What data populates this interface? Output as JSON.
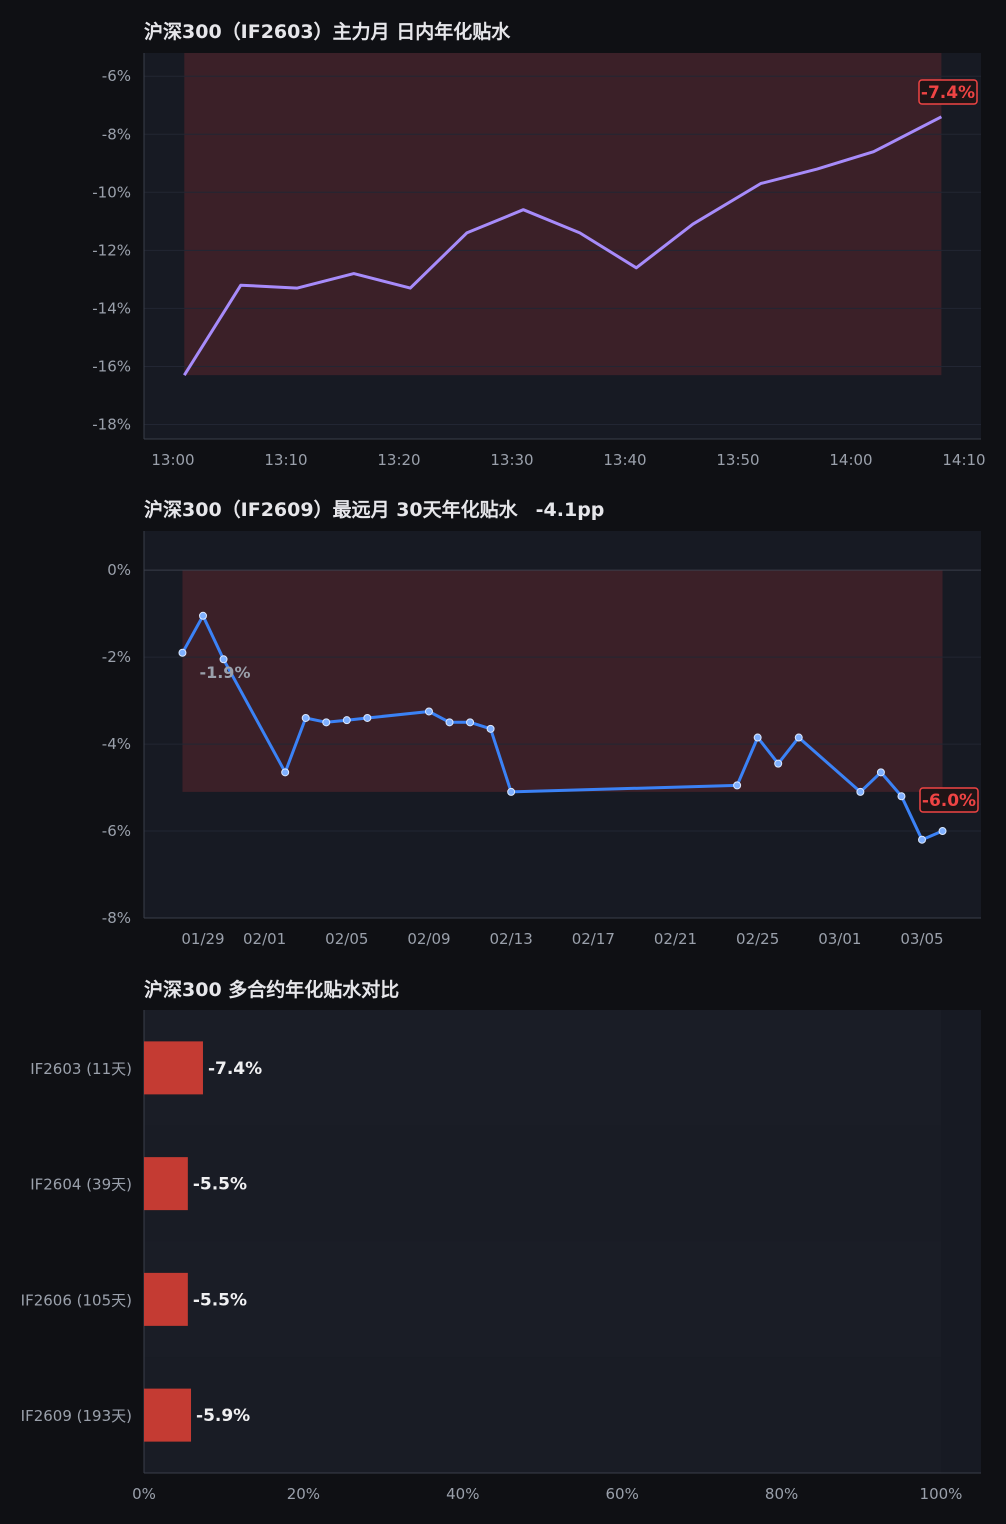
{
  "chart_data": [
    {
      "type": "line",
      "title": "沪深300（IF2603）主力月 日内年化贴水",
      "ylim": [
        -18.5,
        -5.2
      ],
      "yticks": [
        -6,
        -8,
        -10,
        -12,
        -14,
        -16,
        -18
      ],
      "ytick_labels": [
        "-6%",
        "-8%",
        "-10%",
        "-12%",
        "-14%",
        "-16%",
        "-18%"
      ],
      "xticks": [
        "13:00",
        "13:10",
        "13:20",
        "13:30",
        "13:40",
        "13:50",
        "14:00",
        "14:10"
      ],
      "x": [
        "13:01",
        "13:06",
        "13:11",
        "13:16",
        "13:21",
        "13:26",
        "13:31",
        "13:36",
        "13:41",
        "13:46",
        "13:52",
        "13:57",
        "14:02",
        "14:08"
      ],
      "values": [
        -16.3,
        -13.2,
        -13.3,
        -12.8,
        -13.3,
        -11.4,
        -10.6,
        -11.4,
        -12.6,
        -11.1,
        -9.7,
        -9.2,
        -8.6,
        -7.4
      ],
      "line_color": "#a78bfa",
      "shade_color": "#ef4444",
      "last_label": "-7.4%",
      "grid": true
    },
    {
      "type": "line",
      "title": "沪深300（IF2609）最远月 30天年化贴水",
      "title_change": "-4.1pp",
      "ylim": [
        -8.0,
        0.9
      ],
      "yticks": [
        0,
        -2,
        -4,
        -6,
        -8
      ],
      "ytick_labels": [
        "0%",
        "-2%",
        "-4%",
        "-6%",
        "-8%"
      ],
      "xticks": [
        "01/29",
        "02/01",
        "02/05",
        "02/09",
        "02/13",
        "02/17",
        "02/21",
        "02/25",
        "03/01",
        "03/05"
      ],
      "x": [
        "01/28",
        "01/29",
        "01/30",
        "02/02",
        "02/03",
        "02/04",
        "02/05",
        "02/06",
        "02/09",
        "02/10",
        "02/11",
        "02/12",
        "02/13",
        "02/24",
        "02/25",
        "02/26",
        "02/27",
        "03/02",
        "03/03",
        "03/04",
        "03/05",
        "03/06"
      ],
      "values": [
        -1.9,
        -1.05,
        -2.05,
        -4.65,
        -3.4,
        -3.5,
        -3.45,
        -3.4,
        -3.25,
        -3.5,
        -3.5,
        -3.65,
        -5.1,
        -4.95,
        -3.85,
        -4.45,
        -3.85,
        -5.1,
        -4.65,
        -5.2,
        -6.2,
        -6.0
      ],
      "line_color": "#3b82f6",
      "shade_color": "#ef4444",
      "first_label": "-1.9%",
      "last_label": "-6.0%",
      "grid": true
    },
    {
      "type": "bar",
      "orientation": "horizontal",
      "title": "沪深300 多合约年化贴水对比",
      "categories": [
        "IF2603 (11天)",
        "IF2604 (39天)",
        "IF2606 (105天)",
        "IF2609 (193天)"
      ],
      "values": [
        -7.4,
        -5.5,
        -5.5,
        -5.9
      ],
      "value_labels": [
        "-7.4%",
        "-5.5%",
        "-5.5%",
        "-5.9%"
      ],
      "xlim": [
        0,
        100
      ],
      "xticks": [
        0,
        20,
        40,
        60,
        80,
        100
      ],
      "xtick_labels": [
        "0%",
        "20%",
        "40%",
        "60%",
        "80%",
        "100%"
      ],
      "bar_color": "#c43b33"
    }
  ]
}
